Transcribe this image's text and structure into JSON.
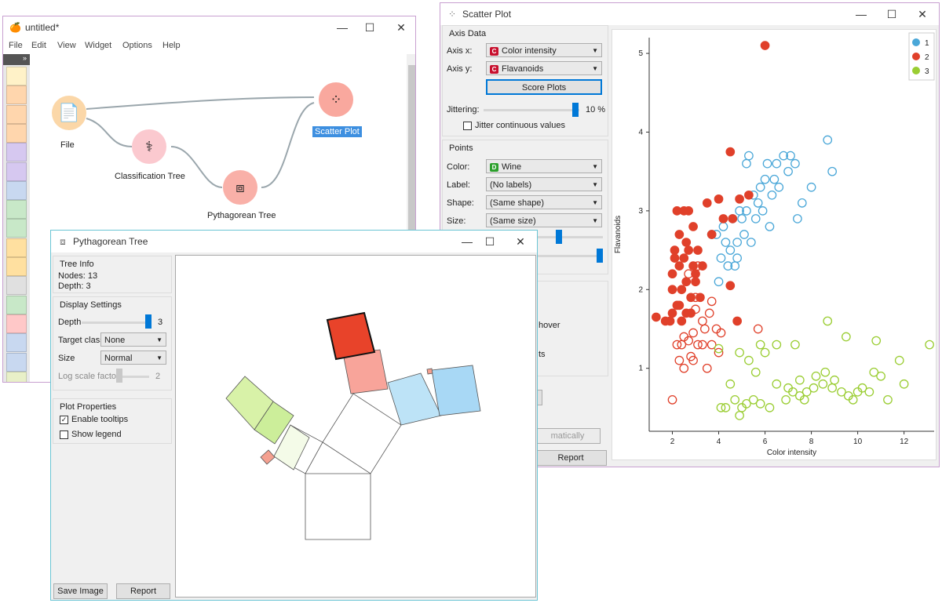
{
  "orange_window": {
    "title": "untitled*",
    "menu": [
      "File",
      "Edit",
      "View",
      "Widget",
      "Options",
      "Help"
    ],
    "nodes": {
      "file": "File",
      "classification_tree": "Classification Tree",
      "pythagorean_tree": "Pythagorean Tree",
      "scatter_plot": "Scatter Plot"
    },
    "toolbox_colors": [
      "#fff2c8",
      "#ffd6ad",
      "#ffd6ad",
      "#ffd6ad",
      "#d6c8f0",
      "#d6c8f0",
      "#c8d8f0",
      "#c8e8c8",
      "#c8e8c8",
      "#ffe0a0",
      "#ffe0a0",
      "#e0e0e0",
      "#c8e8c8",
      "#ffc8c8",
      "#c8d8f0",
      "#c8d8f0",
      "#e8f0c8"
    ]
  },
  "scatter_window": {
    "title": "Scatter Plot",
    "axis_data": {
      "title": "Axis Data",
      "x_label": "Axis x:",
      "x_value": "Color intensity",
      "y_label": "Axis y:",
      "y_value": "Flavanoids",
      "score_plots": "Score Plots",
      "jittering_label": "Jittering:",
      "jittering_value": "10 %",
      "jitter_continuous": "Jitter continuous values"
    },
    "points": {
      "title": "Points",
      "color_label": "Color:",
      "color_value": "Wine",
      "label_label": "Label:",
      "label_value": "(No labels)",
      "shape_label": "Shape:",
      "shape_value": "(Same shape)",
      "size_label": "Size:",
      "size_value": "(Same size)"
    },
    "partial": {
      "hover": "hover",
      "ts": "ts",
      "matically": "matically",
      "report": "Report"
    },
    "colors": {
      "class1": "#4aa7d8",
      "class2": "#e0402a",
      "class3": "#9acd32",
      "accent": "#0078d7"
    }
  },
  "pythagorean_window": {
    "title": "Pythagorean Tree",
    "tree_info": {
      "title": "Tree Info",
      "nodes": "Nodes: 13",
      "depth": "Depth: 3"
    },
    "display_settings": {
      "title": "Display Settings",
      "depth_label": "Depth",
      "depth_value": "3",
      "target_class_label": "Target class",
      "target_class_value": "None",
      "size_label": "Size",
      "size_value": "Normal",
      "log_scale_label": "Log scale factor",
      "log_scale_value": "2"
    },
    "plot_properties": {
      "title": "Plot Properties",
      "enable_tooltips": "Enable tooltips",
      "show_legend": "Show legend"
    },
    "save_image": "Save Image",
    "report": "Report"
  },
  "chart_data": {
    "type": "scatter",
    "xlabel": "Color intensity",
    "ylabel": "Flavanoids",
    "xlim": [
      1,
      13.3
    ],
    "ylim": [
      0.2,
      5.2
    ],
    "xticks": [
      "2",
      "4",
      "6",
      "8",
      "10",
      "12"
    ],
    "yticks": [
      "1",
      "2",
      "3",
      "4",
      "5"
    ],
    "legend_position": "top-right",
    "series": [
      {
        "name": "1",
        "color": "#4aa7d8",
        "points": [
          [
            3.9,
            2.7
          ],
          [
            4.2,
            2.8
          ],
          [
            4.5,
            2.5
          ],
          [
            4.8,
            2.6
          ],
          [
            5.0,
            2.9
          ],
          [
            5.2,
            3.0
          ],
          [
            5.5,
            3.2
          ],
          [
            5.8,
            3.3
          ],
          [
            6.0,
            3.4
          ],
          [
            6.3,
            3.2
          ],
          [
            6.5,
            3.6
          ],
          [
            6.8,
            3.7
          ],
          [
            7.0,
            3.5
          ],
          [
            7.3,
            3.6
          ],
          [
            7.6,
            3.1
          ],
          [
            8.0,
            3.3
          ],
          [
            8.7,
            3.9
          ],
          [
            8.9,
            3.5
          ],
          [
            5.3,
            3.7
          ],
          [
            5.9,
            3.0
          ],
          [
            4.1,
            2.4
          ],
          [
            4.6,
            2.9
          ],
          [
            5.1,
            2.7
          ],
          [
            5.6,
            2.9
          ],
          [
            6.2,
            2.8
          ],
          [
            4.0,
            2.1
          ],
          [
            4.4,
            2.3
          ],
          [
            5.4,
            2.6
          ],
          [
            6.1,
            3.6
          ],
          [
            7.1,
            3.7
          ],
          [
            4.3,
            2.6
          ],
          [
            4.9,
            3.0
          ],
          [
            5.7,
            3.1
          ],
          [
            6.4,
            3.4
          ],
          [
            4.7,
            2.3
          ],
          [
            3.7,
            2.7
          ],
          [
            5.2,
            3.6
          ],
          [
            6.6,
            3.3
          ],
          [
            7.4,
            2.9
          ],
          [
            4.8,
            2.4
          ]
        ]
      },
      {
        "name": "2",
        "color": "#e0402a",
        "filled": true,
        "points": [
          [
            6.0,
            5.1
          ],
          [
            1.3,
            1.65
          ],
          [
            1.7,
            1.6
          ],
          [
            1.9,
            1.6
          ],
          [
            2.0,
            1.7
          ],
          [
            2.2,
            1.8
          ],
          [
            2.0,
            2.2
          ],
          [
            2.3,
            2.3
          ],
          [
            2.5,
            2.4
          ],
          [
            2.7,
            2.5
          ],
          [
            2.9,
            2.3
          ],
          [
            3.0,
            2.1
          ],
          [
            2.8,
            1.9
          ],
          [
            2.6,
            1.7
          ],
          [
            2.4,
            2.0
          ],
          [
            2.1,
            2.5
          ],
          [
            2.3,
            2.7
          ],
          [
            2.6,
            2.6
          ],
          [
            2.9,
            2.8
          ],
          [
            3.1,
            2.5
          ],
          [
            2.5,
            3.0
          ],
          [
            2.2,
            3.0
          ],
          [
            2.7,
            3.0
          ],
          [
            3.0,
            2.2
          ],
          [
            3.3,
            2.3
          ],
          [
            2.8,
            1.7
          ],
          [
            2.4,
            1.6
          ],
          [
            4.5,
            3.75
          ],
          [
            4.0,
            3.15
          ],
          [
            4.6,
            2.9
          ],
          [
            4.2,
            2.9
          ],
          [
            3.5,
            3.1
          ],
          [
            3.7,
            2.7
          ],
          [
            2.0,
            2.0
          ],
          [
            2.3,
            1.8
          ],
          [
            4.8,
            1.6
          ],
          [
            4.5,
            2.05
          ],
          [
            3.2,
            1.9
          ],
          [
            2.6,
            2.1
          ],
          [
            2.1,
            2.4
          ],
          [
            5.3,
            3.2
          ],
          [
            4.9,
            3.15
          ]
        ]
      },
      {
        "name": "2",
        "color": "#e0402a",
        "filled": false,
        "points": [
          [
            2.0,
            0.6
          ],
          [
            2.2,
            1.3
          ],
          [
            2.4,
            1.3
          ],
          [
            2.5,
            1.4
          ],
          [
            2.7,
            1.35
          ],
          [
            2.9,
            1.45
          ],
          [
            3.1,
            1.3
          ],
          [
            3.3,
            1.3
          ],
          [
            3.4,
            1.5
          ],
          [
            3.7,
            1.3
          ],
          [
            3.9,
            1.5
          ],
          [
            4.0,
            1.2
          ],
          [
            3.5,
            1.0
          ],
          [
            2.5,
            1.0
          ],
          [
            2.9,
            1.1
          ],
          [
            3.3,
            1.6
          ],
          [
            2.7,
            2.2
          ],
          [
            3.1,
            2.3
          ],
          [
            3.6,
            1.7
          ],
          [
            3.7,
            1.85
          ],
          [
            4.1,
            1.45
          ],
          [
            3.0,
            1.75
          ],
          [
            5.7,
            1.5
          ],
          [
            2.3,
            1.1
          ],
          [
            2.8,
            1.15
          ],
          [
            3.0,
            1.9
          ]
        ]
      },
      {
        "name": "3",
        "color": "#9acd32",
        "points": [
          [
            4.0,
            1.25
          ],
          [
            4.9,
            1.2
          ],
          [
            5.3,
            1.1
          ],
          [
            5.6,
            0.95
          ],
          [
            6.0,
            1.2
          ],
          [
            6.5,
            0.8
          ],
          [
            7.0,
            0.75
          ],
          [
            7.2,
            0.7
          ],
          [
            7.5,
            0.65
          ],
          [
            7.8,
            0.7
          ],
          [
            8.1,
            0.75
          ],
          [
            8.5,
            0.8
          ],
          [
            8.9,
            0.75
          ],
          [
            9.3,
            0.7
          ],
          [
            9.6,
            0.65
          ],
          [
            10.0,
            0.7
          ],
          [
            10.5,
            0.7
          ],
          [
            11.0,
            0.9
          ],
          [
            11.8,
            1.1
          ],
          [
            13.1,
            1.3
          ],
          [
            12.0,
            0.8
          ],
          [
            10.8,
            1.35
          ],
          [
            9.5,
            1.4
          ],
          [
            8.7,
            1.6
          ],
          [
            7.3,
            1.3
          ],
          [
            6.5,
            1.3
          ],
          [
            5.8,
            1.3
          ],
          [
            4.5,
            0.8
          ],
          [
            4.3,
            0.5
          ],
          [
            4.7,
            0.6
          ],
          [
            5.0,
            0.5
          ],
          [
            5.5,
            0.6
          ],
          [
            5.8,
            0.55
          ],
          [
            6.2,
            0.5
          ],
          [
            4.9,
            0.4
          ],
          [
            5.2,
            0.55
          ],
          [
            7.5,
            0.85
          ],
          [
            8.2,
            0.9
          ],
          [
            8.6,
            0.95
          ],
          [
            9.0,
            0.85
          ],
          [
            10.2,
            0.75
          ],
          [
            10.7,
            0.95
          ],
          [
            6.9,
            0.6
          ],
          [
            7.7,
            0.6
          ],
          [
            9.8,
            0.6
          ],
          [
            11.3,
            0.6
          ],
          [
            4.1,
            0.5
          ]
        ]
      }
    ],
    "legend": [
      "1",
      "2",
      "3"
    ]
  }
}
